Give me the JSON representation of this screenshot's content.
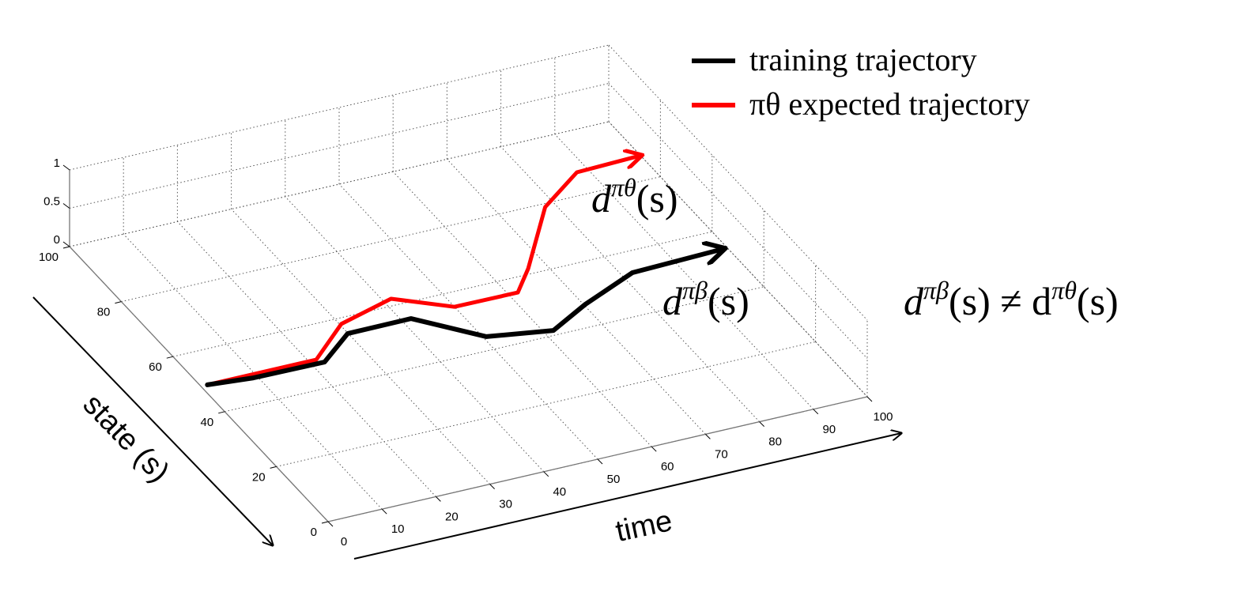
{
  "chart_data": {
    "type": "line3d",
    "xlabel": "time",
    "ylabel": "state (s)",
    "xlim": [
      0,
      100
    ],
    "xticks": [
      0,
      10,
      20,
      30,
      40,
      50,
      60,
      70,
      80,
      90,
      100
    ],
    "ylim": [
      0,
      100
    ],
    "yticks": [
      0,
      20,
      40,
      60,
      80,
      100
    ],
    "zlim": [
      0,
      1
    ],
    "zticks": [
      0,
      0.5,
      1
    ],
    "grid": true,
    "series": [
      {
        "name": "training trajectory",
        "color": "#000000",
        "x": [
          1.2,
          9.2,
          22.3,
          29.9,
          41.7,
          50.6,
          61.7,
          70.3,
          82.0,
          99.2
        ],
        "values": [
          49.2,
          48.1,
          47.9,
          54.8,
          54.9,
          44.3,
          41.5,
          47.1,
          53.3,
          54.1
        ]
      },
      {
        "name": "πθ expected trajectory",
        "color": "#ff0000",
        "x": [
          1.2,
          21.4,
          30.3,
          41.5,
          50.0,
          61.7,
          66.7,
          78.1,
          87.9,
          100
        ],
        "values": [
          49.2,
          49.2,
          58.1,
          62.2,
          55.4,
          55.3,
          61.7,
          78.9,
          87.1,
          87.7
        ]
      }
    ],
    "annotations": [
      [
        "d",
        "πθ",
        "(s)"
      ],
      [
        "d",
        "πβ",
        "(s)"
      ],
      [
        "d",
        "πβ",
        "(s) ≠ d",
        "πθ",
        "(s)"
      ]
    ]
  }
}
